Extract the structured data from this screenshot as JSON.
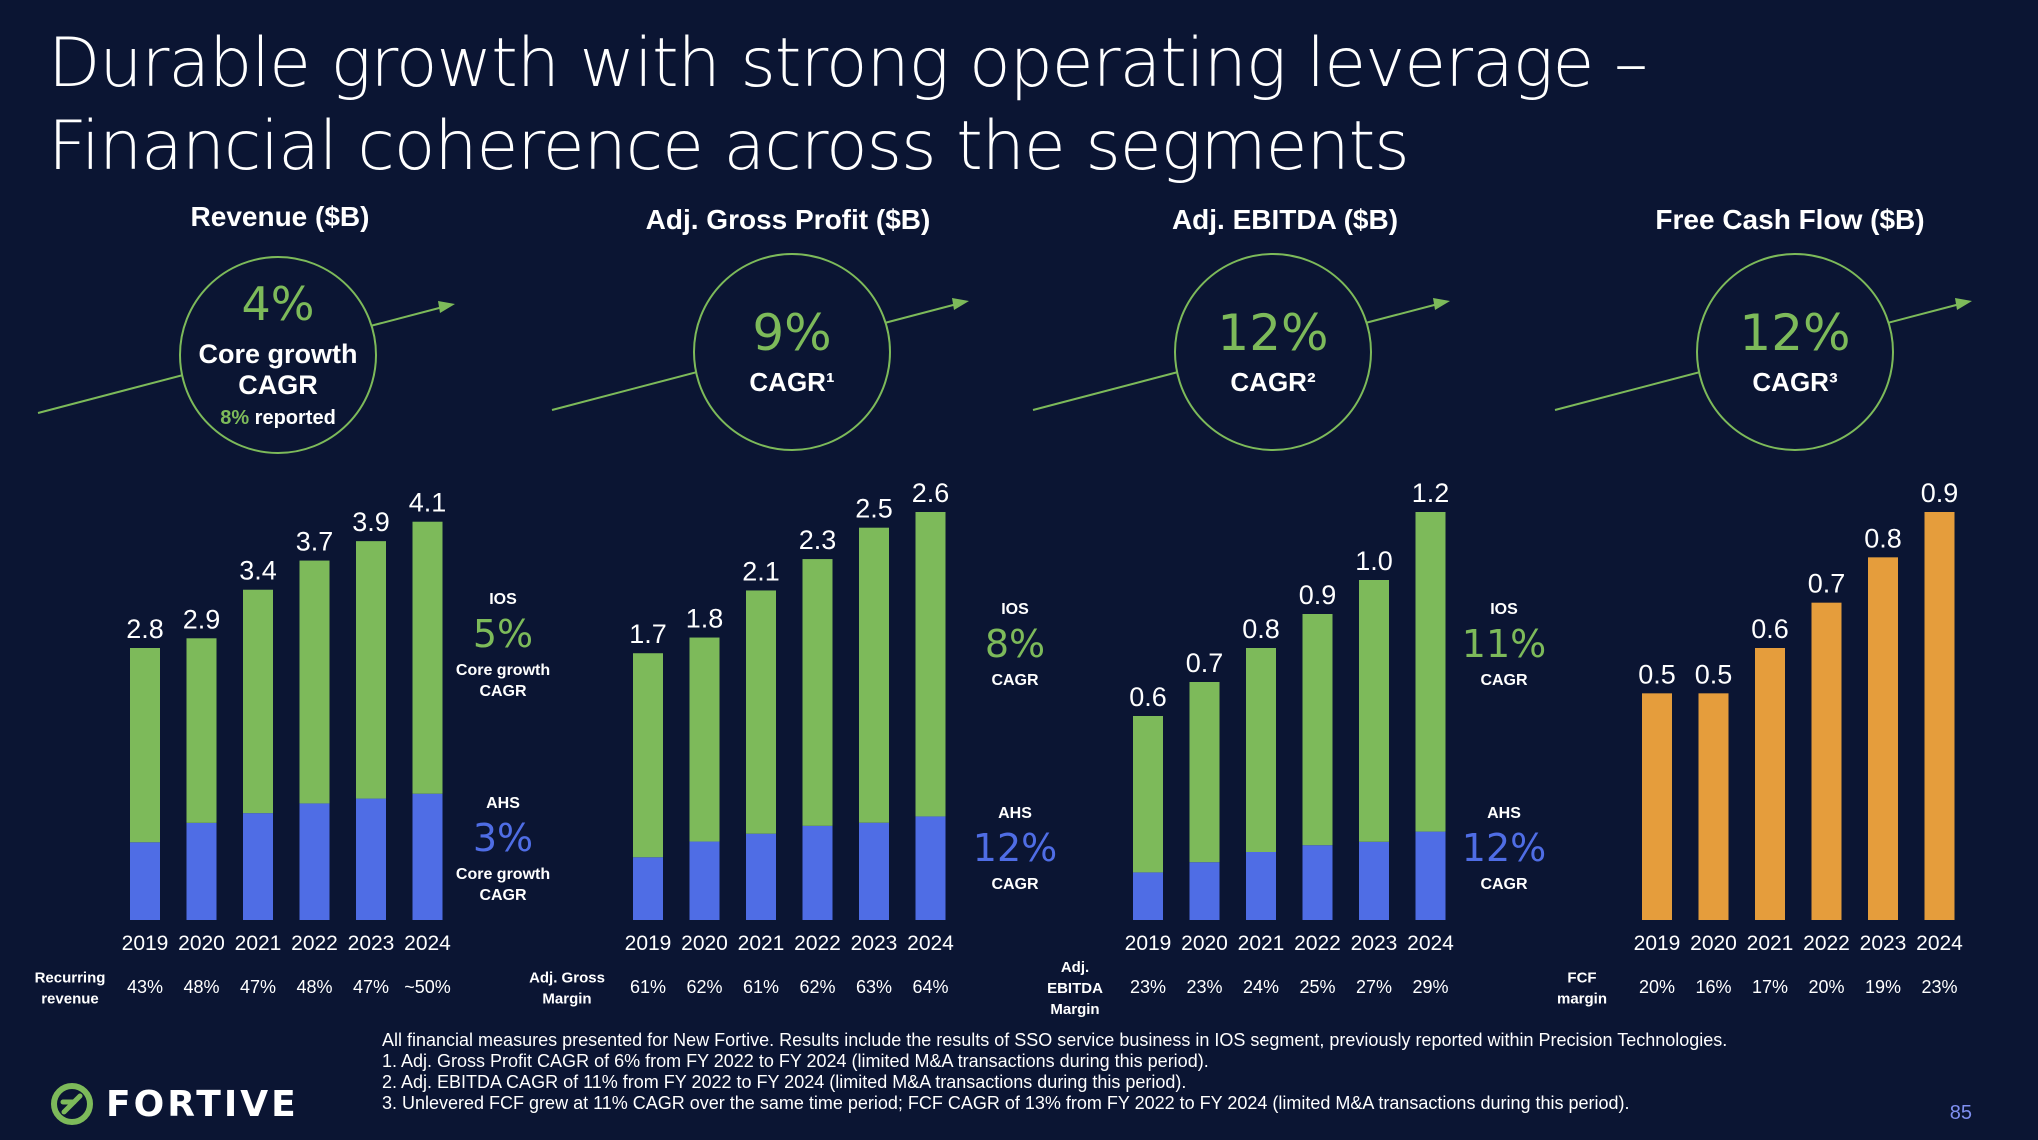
{
  "title": {
    "line1": "Durable growth with strong operating leverage –",
    "line2": "Financial coherence across the segments"
  },
  "colors": {
    "background": "#0b1533",
    "green": "#7dba5a",
    "blue": "#4f6de5",
    "orange": "#e59d3c",
    "circle": "#7dba5a"
  },
  "chart_data": [
    {
      "type": "bar",
      "title": "Revenue ($B)",
      "stacked": true,
      "categories": [
        "2019",
        "2020",
        "2021",
        "2022",
        "2023",
        "2024"
      ],
      "totals": [
        2.8,
        2.9,
        3.4,
        3.7,
        3.9,
        4.1
      ],
      "total_labels": [
        "2.8",
        "2.9",
        "3.4",
        "3.7",
        "3.9",
        "4.1"
      ],
      "series": [
        {
          "name": "AHS",
          "color": "blue",
          "values": [
            0.8,
            1.0,
            1.1,
            1.2,
            1.25,
            1.3
          ]
        },
        {
          "name": "IOS",
          "color": "green",
          "values": [
            2.0,
            1.9,
            2.3,
            2.5,
            2.65,
            2.8
          ]
        }
      ],
      "ylim": [
        0,
        4.2
      ],
      "cagr": {
        "value": "4%",
        "label_line1": "Core growth",
        "label_line2": "CAGR",
        "reported_pct": "8%",
        "reported_text": " reported"
      },
      "segments": [
        {
          "name": "IOS",
          "value": "5%",
          "label_line1": "Core growth",
          "label_line2": "CAGR",
          "color": "green"
        },
        {
          "name": "AHS",
          "value": "3%",
          "label_line1": "Core growth",
          "label_line2": "CAGR",
          "color": "blue"
        }
      ],
      "metric": {
        "label_lines": [
          "Recurring",
          "revenue"
        ],
        "values": [
          "43%",
          "48%",
          "47%",
          "48%",
          "47%",
          "~50%"
        ]
      }
    },
    {
      "type": "bar",
      "title": "Adj. Gross Profit ($B)",
      "stacked": true,
      "categories": [
        "2019",
        "2020",
        "2021",
        "2022",
        "2023",
        "2024"
      ],
      "totals": [
        1.7,
        1.8,
        2.1,
        2.3,
        2.5,
        2.6
      ],
      "total_labels": [
        "1.7",
        "1.8",
        "2.1",
        "2.3",
        "2.5",
        "2.6"
      ],
      "series": [
        {
          "name": "AHS",
          "color": "blue",
          "values": [
            0.4,
            0.5,
            0.55,
            0.6,
            0.62,
            0.66
          ]
        },
        {
          "name": "IOS",
          "color": "green",
          "values": [
            1.3,
            1.3,
            1.55,
            1.7,
            1.88,
            1.94
          ]
        }
      ],
      "ylim": [
        0,
        2.6
      ],
      "cagr": {
        "value": "9%",
        "label_line1": "CAGR¹"
      },
      "segments": [
        {
          "name": "IOS",
          "value": "8%",
          "label_line1": "CAGR",
          "color": "green"
        },
        {
          "name": "AHS",
          "value": "12%",
          "label_line1": "CAGR",
          "color": "blue"
        }
      ],
      "metric": {
        "label_lines": [
          "Adj. Gross",
          "Margin"
        ],
        "values": [
          "61%",
          "62%",
          "61%",
          "62%",
          "63%",
          "64%"
        ]
      }
    },
    {
      "type": "bar",
      "title": "Adj. EBITDA ($B)",
      "stacked": true,
      "categories": [
        "2019",
        "2020",
        "2021",
        "2022",
        "2023",
        "2024"
      ],
      "totals": [
        0.6,
        0.7,
        0.8,
        0.9,
        1.0,
        1.2
      ],
      "total_labels": [
        "0.6",
        "0.7",
        "0.8",
        "0.9",
        "1.0",
        "1.2"
      ],
      "series": [
        {
          "name": "AHS",
          "color": "blue",
          "values": [
            0.14,
            0.17,
            0.2,
            0.22,
            0.23,
            0.26
          ]
        },
        {
          "name": "IOS",
          "color": "green",
          "values": [
            0.46,
            0.53,
            0.6,
            0.68,
            0.77,
            0.94
          ]
        }
      ],
      "ylim": [
        0,
        1.2
      ],
      "cagr": {
        "value": "12%",
        "label_line1": "CAGR²"
      },
      "segments": [
        {
          "name": "IOS",
          "value": "11%",
          "label_line1": "CAGR",
          "color": "green"
        },
        {
          "name": "AHS",
          "value": "12%",
          "label_line1": "CAGR",
          "color": "blue"
        }
      ],
      "metric": {
        "label_lines": [
          "Adj.",
          "EBITDA",
          "Margin"
        ],
        "values": [
          "23%",
          "23%",
          "24%",
          "25%",
          "27%",
          "29%"
        ]
      }
    },
    {
      "type": "bar",
      "title": "Free Cash Flow ($B)",
      "stacked": false,
      "categories": [
        "2019",
        "2020",
        "2021",
        "2022",
        "2023",
        "2024"
      ],
      "totals": [
        0.5,
        0.5,
        0.6,
        0.7,
        0.8,
        0.9
      ],
      "total_labels": [
        "0.5",
        "0.5",
        "0.6",
        "0.7",
        "0.8",
        "0.9"
      ],
      "series": [
        {
          "name": "",
          "color": "orange",
          "values": [
            0.5,
            0.5,
            0.6,
            0.7,
            0.8,
            0.9
          ]
        }
      ],
      "ylim": [
        0,
        0.9
      ],
      "cagr": {
        "value": "12%",
        "label_line1": "CAGR³"
      },
      "segments": [],
      "metric": {
        "label_lines": [
          "FCF",
          "margin"
        ],
        "values": [
          "20%",
          "16%",
          "17%",
          "20%",
          "19%",
          "23%"
        ]
      }
    }
  ],
  "footnotes": [
    "All financial measures presented for New Fortive. Results include the results of SSO service business in IOS segment, previously reported within Precision Technologies.",
    "1. Adj. Gross Profit CAGR of 6% from FY 2022 to FY 2024 (limited M&A transactions during this period).",
    "2. Adj. EBITDA CAGR of 11% from FY 2022 to FY 2024 (limited M&A transactions during this period).",
    "3. Unlevered FCF grew at 11% CAGR over the same time period; FCF CAGR of 13% from FY 2022 to FY 2024 (limited M&A transactions during this period)."
  ],
  "logo": {
    "text": "FORTIVE",
    "icon": "fortive-logo-icon"
  },
  "page_number": "85"
}
